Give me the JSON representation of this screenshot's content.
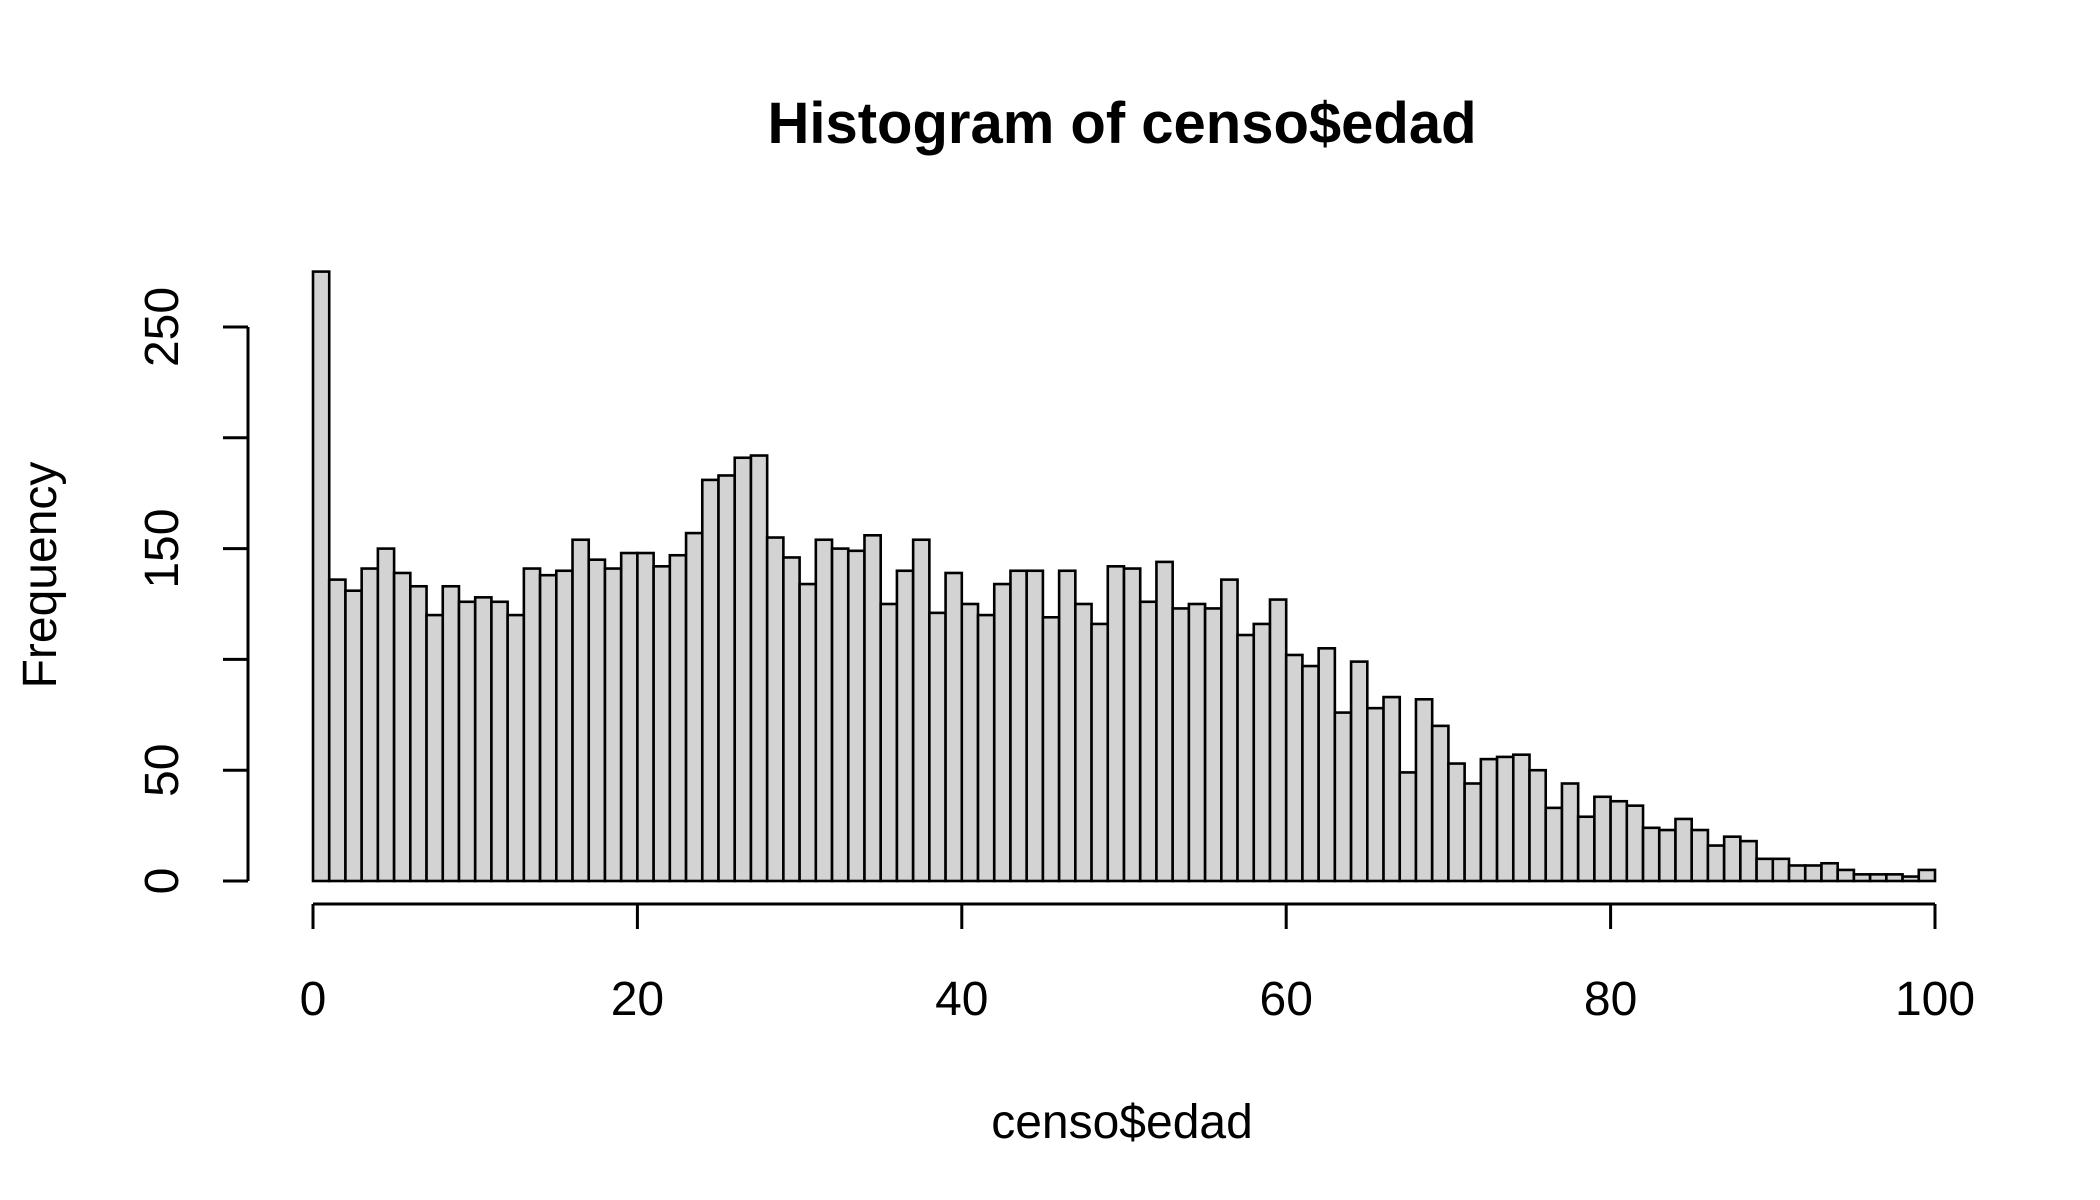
{
  "chart_data": {
    "type": "bar",
    "title": "Histogram of censo$edad",
    "xlabel": "censo$edad",
    "ylabel": "Frequency",
    "xlim": [
      0,
      100
    ],
    "ylim": [
      0,
      250
    ],
    "x_ticks": [
      0,
      20,
      40,
      60,
      80,
      100
    ],
    "y_ticks": [
      0,
      50,
      100,
      150,
      200,
      250
    ],
    "y_tick_labels": [
      "0",
      "50",
      "",
      "150",
      "",
      "250"
    ],
    "grid": false,
    "legend": "none",
    "bin_width": 1,
    "bin_start": 0,
    "values": [
      275,
      136,
      131,
      141,
      150,
      139,
      133,
      120,
      133,
      126,
      128,
      126,
      120,
      141,
      138,
      140,
      154,
      145,
      141,
      148,
      148,
      142,
      147,
      157,
      181,
      183,
      191,
      192,
      155,
      146,
      134,
      154,
      150,
      149,
      156,
      125,
      140,
      154,
      121,
      139,
      125,
      120,
      134,
      140,
      140,
      119,
      140,
      125,
      116,
      142,
      141,
      126,
      144,
      123,
      125,
      123,
      136,
      111,
      116,
      127,
      102,
      97,
      105,
      76,
      99,
      78,
      83,
      49,
      82,
      70,
      53,
      44,
      55,
      56,
      57,
      50,
      33,
      44,
      29,
      38,
      36,
      34,
      24,
      23,
      28,
      23,
      16,
      20,
      18,
      10,
      10,
      7,
      7,
      8,
      5,
      3,
      3,
      3,
      2,
      5
    ],
    "colors": {
      "bar_fill": "#d3d3d3",
      "bar_stroke": "#000000",
      "background": "#ffffff"
    }
  }
}
